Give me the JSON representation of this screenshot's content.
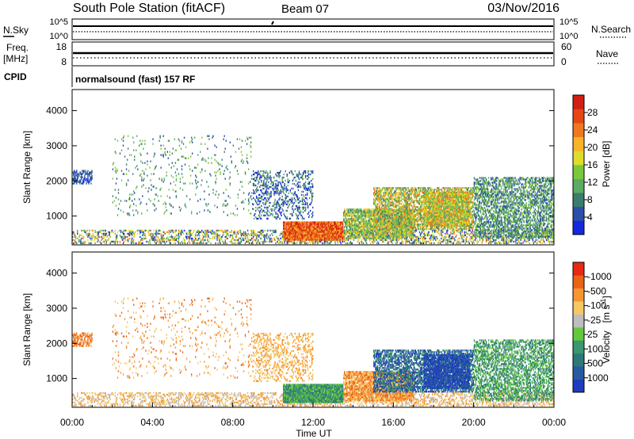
{
  "header": {
    "station": "South Pole Station (fitACF)",
    "beam": "Beam 07",
    "date": "03/Nov/2016"
  },
  "strips": {
    "nsky_label": "N.Sky",
    "nsearch_label": "N.Search",
    "nsky_ticks": [
      "10^5",
      "10^0"
    ],
    "nsearch_ticks": [
      "10^5",
      "10^0"
    ],
    "freq_label_1": "Freq.",
    "freq_label_2": "[MHz]",
    "freq_ticks": [
      "18",
      "8"
    ],
    "nave_label": "Nave",
    "nave_ticks": [
      "60",
      "0"
    ],
    "cpid_label": "CPID",
    "cpid_text": "normalsound (fast) 157 RF"
  },
  "chart_data": [
    {
      "type": "heatmap",
      "title": "",
      "ylabel": "Slant Range [km]",
      "ylim": [
        180,
        4600
      ],
      "yticks": [
        1000,
        2000,
        3000,
        4000
      ],
      "x_range_hours": [
        0,
        24
      ],
      "colorbar": {
        "label": "Power [dB]",
        "ticks": [
          "4",
          "8",
          "12",
          "16",
          "20",
          "24",
          "28"
        ],
        "colors": [
          "#1428e0",
          "#2c50a8",
          "#3c7c6c",
          "#5caa64",
          "#7cc83c",
          "#e0dc2c",
          "#f8b428",
          "#f07820",
          "#e64614",
          "#d21e14"
        ]
      }
    },
    {
      "type": "heatmap",
      "title": "",
      "ylabel": "Slant Range [km]",
      "xlabel": "Time UT",
      "ylim": [
        180,
        4600
      ],
      "yticks": [
        1000,
        2000,
        3000,
        4000
      ],
      "xticks": [
        "00:00",
        "04:00",
        "08:00",
        "12:00",
        "16:00",
        "20:00",
        "00:00"
      ],
      "colorbar": {
        "label": "Velocity",
        "unit": "[m s",
        "unit_exp": "-1",
        "unit_close": "]",
        "ticks": [
          "1000",
          "500",
          "100",
          "25",
          "-25",
          "-100",
          "-500",
          "-1000"
        ],
        "colors": [
          "#1e3cbe",
          "#285aa0",
          "#2e7878",
          "#3c966e",
          "#64c83c",
          "#bebebe",
          "#f5c864",
          "#f59632",
          "#eb6414",
          "#e62814"
        ]
      }
    }
  ]
}
